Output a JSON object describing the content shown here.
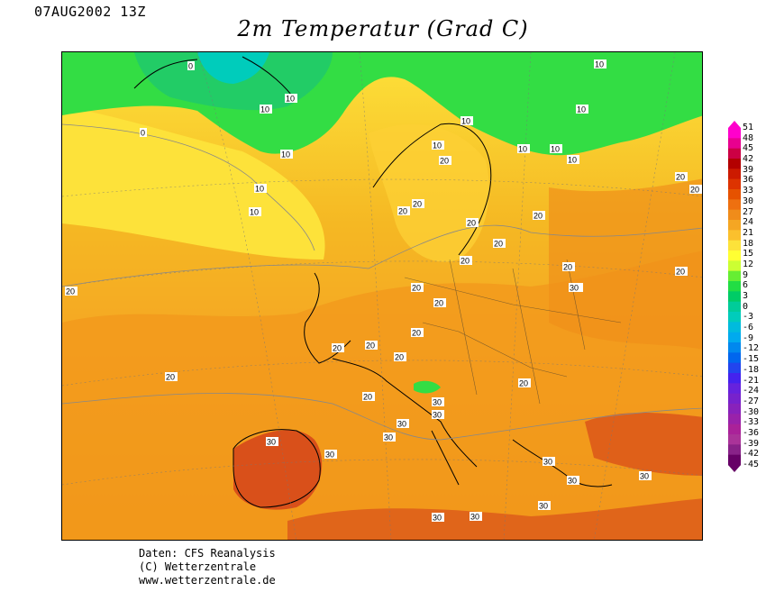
{
  "header": {
    "date": "07AUG2002 13Z",
    "title": "2m Temperatur (Grad C)"
  },
  "legend": {
    "ticks": [
      "51",
      "48",
      "45",
      "42",
      "39",
      "36",
      "33",
      "30",
      "27",
      "24",
      "21",
      "18",
      "15",
      "12",
      "9",
      "6",
      "3",
      "0",
      "-3",
      "-6",
      "-9",
      "-12",
      "-15",
      "-18",
      "-21",
      "-24",
      "-27",
      "-30",
      "-33",
      "-36",
      "-39",
      "-42",
      "-45"
    ],
    "colors": [
      "#ff00cc",
      "#e8008f",
      "#cc0044",
      "#b30000",
      "#cc1a00",
      "#dd3300",
      "#e65200",
      "#ee7010",
      "#f08c1a",
      "#f5a623",
      "#fbc02d",
      "#fde23a",
      "#ffff33",
      "#ccff33",
      "#66ee33",
      "#22dd44",
      "#00cc66",
      "#00cc99",
      "#00ccbb",
      "#00bbdd",
      "#00aaee",
      "#0088ee",
      "#0066ee",
      "#2244ee",
      "#4422ee",
      "#6622dd",
      "#7722cc",
      "#8822bb",
      "#9922aa",
      "#aa2299",
      "#aa3399",
      "#882288",
      "#660066"
    ]
  },
  "map": {
    "contour_labels": [
      "0",
      "10",
      "10",
      "0",
      "10",
      "10",
      "10",
      "10",
      "10",
      "10",
      "10",
      "10",
      "10",
      "10",
      "20",
      "20",
      "20",
      "20",
      "20",
      "20",
      "20",
      "20",
      "20",
      "20",
      "20",
      "20",
      "20",
      "20",
      "20",
      "20",
      "20",
      "20",
      "20",
      "20",
      "20",
      "20",
      "30",
      "30",
      "30",
      "30",
      "30",
      "30",
      "30",
      "30",
      "30",
      "30",
      "30",
      "30",
      "30"
    ]
  },
  "credits": {
    "line1": "Daten: CFS Reanalysis",
    "line2": "(C) Wetterzentrale",
    "line3": "www.wetterzentrale.de"
  }
}
